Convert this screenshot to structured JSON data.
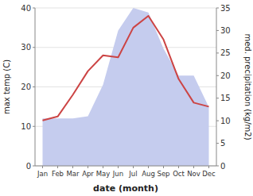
{
  "chart_data": {
    "type": "line",
    "xlabel": "date (month)",
    "ylabel": "max temp (C)",
    "y2label": "med. precipitation (kg/m2)",
    "categories": [
      "Jan",
      "Feb",
      "Mar",
      "Apr",
      "May",
      "Jun",
      "Jul",
      "Aug",
      "Sep",
      "Oct",
      "Nov",
      "Dec"
    ],
    "series": [
      {
        "type": "area",
        "axis": "y2",
        "color": "#c5ccee",
        "values": [
          10.5,
          10.5,
          10.5,
          11,
          18,
          30,
          35,
          34,
          26,
          20,
          20,
          13
        ]
      },
      {
        "type": "line",
        "color": "#cc4444",
        "values": [
          11.5,
          12.5,
          18,
          24,
          28,
          27.5,
          35,
          38,
          32,
          22,
          16,
          15
        ]
      }
    ],
    "ylim": [
      0,
      40
    ],
    "yticks": [
      0,
      10,
      20,
      30,
      40
    ],
    "y2lim": [
      0,
      35
    ],
    "y2ticks": [
      0,
      5,
      10,
      15,
      20,
      25,
      30,
      35
    ],
    "grid": true
  }
}
